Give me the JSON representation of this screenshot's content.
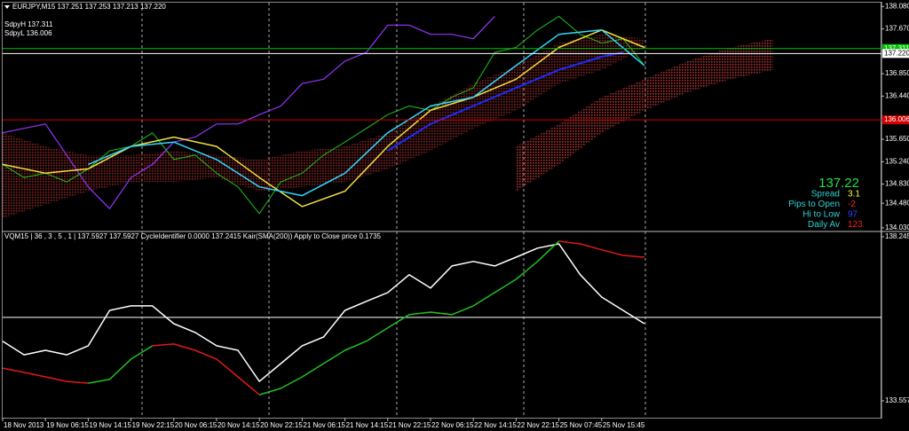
{
  "chart_data": [
    {
      "type": "line",
      "title": "EURJPY,M15  137.251 137.253 137.213 137.220",
      "annotations": [
        "SdpyH 137.311",
        "SdpyL 136.006"
      ],
      "xlim": [
        0,
        20.54
      ],
      "ylim": [
        133.98,
        138.15
      ],
      "yticks": [
        {
          "value": 138.08,
          "label": "138.080"
        },
        {
          "value": 137.67,
          "label": "137.670"
        },
        {
          "value": 136.85,
          "label": "136.850"
        },
        {
          "value": 136.44,
          "label": "136.440"
        },
        {
          "value": 135.65,
          "label": "135.650"
        },
        {
          "value": 135.24,
          "label": "135.240"
        },
        {
          "value": 134.83,
          "label": "134.830"
        },
        {
          "value": 134.48,
          "label": "134.480"
        },
        {
          "value": 134.03,
          "label": "134.030"
        }
      ],
      "hlines": [
        {
          "value": 137.311,
          "color": "#00c000"
        },
        {
          "value": 137.22,
          "label": "137.220",
          "color": "#ffffff"
        },
        {
          "value": 136.006,
          "color": "#d00000"
        }
      ],
      "bands": [
        {
          "color": "#8a2020",
          "x": [
            0,
            1,
            2,
            3,
            4,
            5,
            6,
            7,
            8,
            9,
            10,
            11,
            12,
            13,
            14,
            15
          ],
          "upper": [
            135.77,
            135.52,
            135.36,
            135.36,
            135.44,
            135.36,
            135.28,
            135.44,
            135.52,
            135.77,
            136.26,
            136.67,
            137.0,
            137.41,
            137.57,
            137.49
          ],
          "lower": [
            134.21,
            134.46,
            134.7,
            134.87,
            134.87,
            134.95,
            134.7,
            134.78,
            134.87,
            135.11,
            135.44,
            135.85,
            136.18,
            136.67,
            136.92,
            137.33
          ]
        },
        {
          "color": "#b03030",
          "x": [
            12,
            13,
            14,
            15,
            16,
            17,
            18
          ],
          "upper": [
            135.52,
            135.93,
            136.42,
            136.75,
            137.08,
            137.33,
            137.49
          ],
          "lower": [
            134.7,
            135.19,
            135.77,
            136.18,
            136.51,
            136.75,
            136.92
          ]
        }
      ],
      "series": [
        {
          "color": "#9933ff",
          "width": 1.2,
          "x": [
            0,
            1,
            2,
            2.5,
            3,
            3.5,
            4,
            4.5,
            5,
            5.5,
            6,
            6.5,
            7,
            7.5,
            8,
            8.5,
            9,
            9.5,
            10,
            10.5,
            11,
            11.5
          ],
          "values": [
            135.77,
            135.93,
            134.78,
            134.38,
            134.95,
            135.19,
            135.6,
            135.69,
            135.93,
            135.93,
            136.1,
            136.26,
            136.67,
            136.75,
            137.08,
            137.24,
            137.74,
            137.74,
            137.57,
            137.57,
            137.49,
            137.9
          ]
        },
        {
          "color": "#20c020",
          "width": 1,
          "x": [
            0,
            0.5,
            1,
            1.5,
            2,
            2.5,
            3,
            3.5,
            4,
            4.5,
            5,
            5.5,
            6,
            6.5,
            7,
            7.5,
            8,
            8.5,
            9,
            9.5,
            10,
            10.5,
            11,
            11.5,
            12,
            12.5,
            13,
            13.5,
            14,
            14.5,
            15
          ],
          "values": [
            135.19,
            134.95,
            135.03,
            134.87,
            135.11,
            135.44,
            135.52,
            135.77,
            135.28,
            135.36,
            135.03,
            134.78,
            134.29,
            134.87,
            135.03,
            135.36,
            135.6,
            135.85,
            136.1,
            136.26,
            136.18,
            136.42,
            136.59,
            137.24,
            137.33,
            137.65,
            137.9,
            137.57,
            137.41,
            137.49,
            137.0
          ]
        },
        {
          "color": "#1a2cff",
          "width": 2,
          "x": [
            9,
            10,
            11,
            12,
            13,
            14,
            14.5
          ],
          "values": [
            135.44,
            135.93,
            136.26,
            136.59,
            136.92,
            137.16,
            137.24
          ]
        },
        {
          "color": "#f0e040",
          "width": 1.5,
          "x": [
            0,
            1,
            2,
            3,
            4,
            5,
            6,
            7,
            8,
            9,
            10,
            11,
            12,
            13,
            14,
            15
          ],
          "values": [
            135.19,
            135.03,
            135.11,
            135.52,
            135.69,
            135.52,
            134.95,
            134.42,
            134.7,
            135.52,
            136.18,
            136.42,
            136.75,
            137.33,
            137.65,
            137.33
          ]
        },
        {
          "color": "#30d8ff",
          "width": 1.5,
          "x": [
            2,
            3,
            4,
            5,
            6,
            7,
            8,
            9,
            10,
            11,
            12,
            13,
            14,
            15
          ],
          "values": [
            135.19,
            135.52,
            135.6,
            135.28,
            134.78,
            134.62,
            135.03,
            135.77,
            136.26,
            136.42,
            137.0,
            137.57,
            137.65,
            137.0
          ]
        }
      ],
      "info": {
        "price": 137.22,
        "price_color": "#20e040",
        "rows": [
          {
            "label": "Spread",
            "value": 3.1,
            "color": "#ffff40"
          },
          {
            "label": "Pips to Open",
            "value": -2,
            "color": "#ff2020"
          },
          {
            "label": "Hi to Low",
            "value": 97,
            "color": "#3040ff"
          },
          {
            "label": "Daily Av",
            "value": 123,
            "color": "#ff2020"
          }
        ]
      }
    },
    {
      "type": "line",
      "title": "VQM15 | 36 , 3 , 5 , 1 | 137.5927 137.5927 CycleIdentifier 0.0000 137.2415 Kair(SMA(200)) Apply to Close price 0.1735",
      "xlim": [
        0,
        20.54
      ],
      "ylim": [
        133.1,
        138.37
      ],
      "yticks": [
        138.2453,
        133.5572
      ],
      "xticks": [
        {
          "value": 0,
          "label": "18 Nov 2013"
        },
        {
          "value": 1,
          "label": "19 Nov 06:15"
        },
        {
          "value": 2,
          "label": "19 Nov 14:15"
        },
        {
          "value": 3,
          "label": "19 Nov 22:15"
        },
        {
          "value": 4,
          "label": "20 Nov 06:15"
        },
        {
          "value": 5,
          "label": "20 Nov 14:15"
        },
        {
          "value": 6,
          "label": "20 Nov 22:15"
        },
        {
          "value": 7,
          "label": "21 Nov 06:15"
        },
        {
          "value": 8,
          "label": "21 Nov 14:15"
        },
        {
          "value": 9,
          "label": "21 Nov 22:15"
        },
        {
          "value": 10,
          "label": "22 Nov 06:15"
        },
        {
          "value": 11,
          "label": "22 Nov 14:15"
        },
        {
          "value": 12,
          "label": "22 Nov 22:15"
        },
        {
          "value": 13,
          "label": "25 Nov 07:45"
        },
        {
          "value": 14,
          "label": "25 Nov 15:45"
        }
      ],
      "levels": [
        {
          "value": 135.94,
          "color": "#ffffff"
        }
      ],
      "x": [
        0,
        0.5,
        1,
        1.5,
        2,
        2.5,
        3,
        3.5,
        4,
        4.5,
        5,
        5.5,
        6,
        6.5,
        7,
        7.5,
        8,
        8.5,
        9,
        9.5,
        10,
        10.5,
        11,
        11.5,
        12,
        12.5,
        13,
        13.5,
        14,
        14.5,
        15
      ],
      "series": [
        {
          "color": "#ffffff",
          "width": 1.5,
          "values": [
            135.26,
            134.87,
            135.0,
            134.87,
            135.13,
            136.14,
            136.27,
            136.27,
            135.76,
            135.51,
            135.13,
            135.0,
            134.11,
            134.62,
            135.13,
            135.38,
            136.14,
            136.4,
            136.65,
            137.16,
            136.78,
            137.41,
            137.54,
            137.41,
            137.66,
            137.92,
            138.04,
            137.16,
            136.52,
            136.14,
            135.76
          ]
        },
        {
          "color": "#e01818",
          "width": 1.5,
          "values": [
            134.49,
            134.37,
            134.24,
            134.11,
            134.06,
            null,
            null,
            135.13,
            135.18,
            135.0,
            134.75,
            134.24,
            133.73,
            null,
            null,
            null,
            null,
            null,
            null,
            null,
            136.09,
            136.02,
            null,
            null,
            null,
            null,
            138.12,
            138.04,
            137.87,
            137.71,
            137.66
          ]
        },
        {
          "color": "#20c020",
          "width": 1.5,
          "values": [
            null,
            null,
            null,
            null,
            134.06,
            134.17,
            134.75,
            135.13,
            null,
            null,
            null,
            null,
            133.73,
            133.91,
            134.24,
            134.62,
            135.0,
            135.26,
            135.64,
            136.02,
            136.09,
            136.02,
            136.27,
            136.65,
            137.03,
            137.54,
            138.12,
            null,
            null,
            null,
            null
          ]
        }
      ]
    }
  ]
}
